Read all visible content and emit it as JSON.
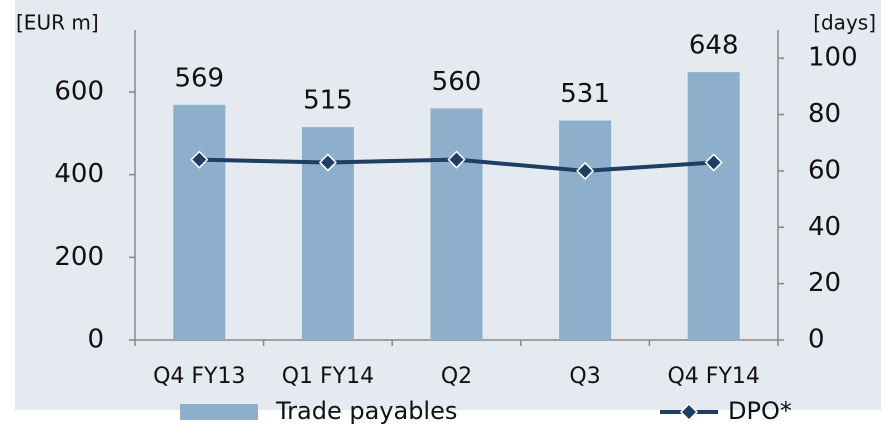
{
  "chart_data": {
    "type": "bar",
    "y_label": "[EUR m]",
    "y2_label": "[days]",
    "categories": [
      "Q4 FY13",
      "Q1 FY14",
      "Q2",
      "Q3",
      "Q4 FY14"
    ],
    "series": [
      {
        "name": "Trade payables",
        "type": "bar",
        "color": "#8eafcb",
        "values": [
          569,
          515,
          560,
          531,
          648
        ]
      },
      {
        "name": "DPO*",
        "type": "line",
        "axis": "y2",
        "color": "#1f3e64",
        "values": [
          64,
          63,
          64,
          60,
          63
        ]
      }
    ],
    "ylim": [
      0,
      750
    ],
    "yticks": [
      0,
      200,
      400,
      600
    ],
    "y2lim": [
      0,
      110
    ],
    "y2ticks": [
      0,
      20,
      40,
      60,
      80,
      100
    ]
  }
}
